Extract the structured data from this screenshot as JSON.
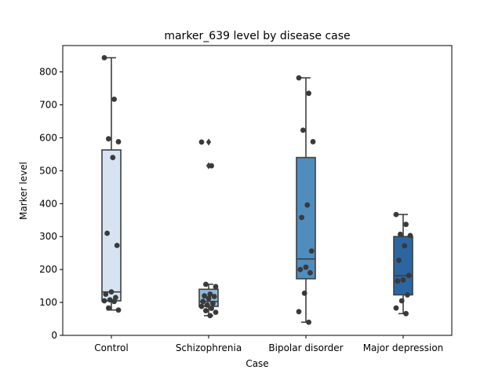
{
  "chart_data": {
    "type": "box",
    "title": "marker_639 level by disease case",
    "xlabel": "Case",
    "ylabel": "Marker level",
    "ylim": [
      0,
      880
    ],
    "yticks": [
      0,
      100,
      200,
      300,
      400,
      500,
      600,
      700,
      800
    ],
    "grid": false,
    "categories": [
      "Control",
      "Schizophrenia",
      "Bipolar disorder",
      "Major depression"
    ],
    "colors": [
      "#d6e4f2",
      "#8fb8d6",
      "#4f8dbf",
      "#2b66a3"
    ],
    "boxes": [
      {
        "category": "Control",
        "q1": 105,
        "median": 132,
        "q3": 563,
        "whisker_low": 77,
        "whisker_high": 843,
        "outliers": []
      },
      {
        "category": "Schizophrenia",
        "q1": 88,
        "median": 103,
        "q3": 140,
        "whisker_low": 60,
        "whisker_high": 155,
        "outliers": [
          515,
          587
        ]
      },
      {
        "category": "Bipolar disorder",
        "q1": 172,
        "median": 232,
        "q3": 540,
        "whisker_low": 40,
        "whisker_high": 782,
        "outliers": []
      },
      {
        "category": "Major depression",
        "q1": 123,
        "median": 181,
        "q3": 300,
        "whisker_low": 66,
        "whisker_high": 367,
        "outliers": []
      }
    ],
    "points": [
      {
        "category": "Control",
        "values": [
          843,
          717,
          597,
          588,
          540,
          310,
          273,
          132,
          125,
          115,
          108,
          105,
          103,
          83,
          77
        ]
      },
      {
        "category": "Schizophrenia",
        "values": [
          587,
          515,
          155,
          148,
          125,
          120,
          118,
          112,
          103,
          97,
          92,
          88,
          82,
          75,
          70,
          60
        ]
      },
      {
        "category": "Bipolar disorder",
        "values": [
          782,
          735,
          623,
          588,
          396,
          358,
          256,
          207,
          200,
          190,
          128,
          72,
          40
        ]
      },
      {
        "category": "Major depression",
        "values": [
          367,
          337,
          307,
          303,
          272,
          228,
          182,
          168,
          165,
          123,
          105,
          83,
          66
        ]
      }
    ]
  }
}
